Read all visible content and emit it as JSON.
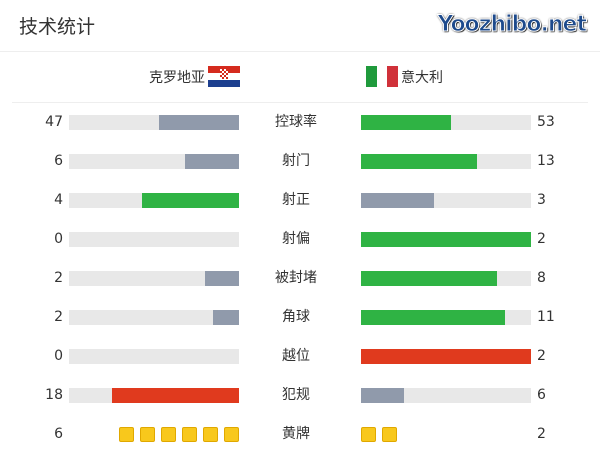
{
  "title": "技术统计",
  "teams": {
    "home": {
      "name": "克罗地亚",
      "flag": "croatia-flag"
    },
    "away": {
      "name": "意大利",
      "flag": "italy-flag"
    }
  },
  "colors": {
    "gray": "#909aab",
    "green": "#2fb344",
    "red": "#e03a1e",
    "track": "#e8e8e8",
    "card": "#f8c81c"
  },
  "stats": [
    {
      "label": "控球率",
      "home": 47,
      "away": 53,
      "home_color": "gray",
      "away_color": "green"
    },
    {
      "label": "射门",
      "home": 6,
      "away": 13,
      "home_color": "gray",
      "away_color": "green"
    },
    {
      "label": "射正",
      "home": 4,
      "away": 3,
      "home_color": "green",
      "away_color": "gray"
    },
    {
      "label": "射偏",
      "home": 0,
      "away": 2,
      "home_color": "gray",
      "away_color": "green"
    },
    {
      "label": "被封堵",
      "home": 2,
      "away": 8,
      "home_color": "gray",
      "away_color": "green"
    },
    {
      "label": "角球",
      "home": 2,
      "away": 11,
      "home_color": "gray",
      "away_color": "green"
    },
    {
      "label": "越位",
      "home": 0,
      "away": 2,
      "home_color": "gray",
      "away_color": "red"
    },
    {
      "label": "犯规",
      "home": 18,
      "away": 6,
      "home_color": "red",
      "away_color": "gray"
    }
  ],
  "yellow_cards": {
    "label": "黄牌",
    "home": 6,
    "away": 2
  },
  "watermark": "Yoozhibo.net"
}
